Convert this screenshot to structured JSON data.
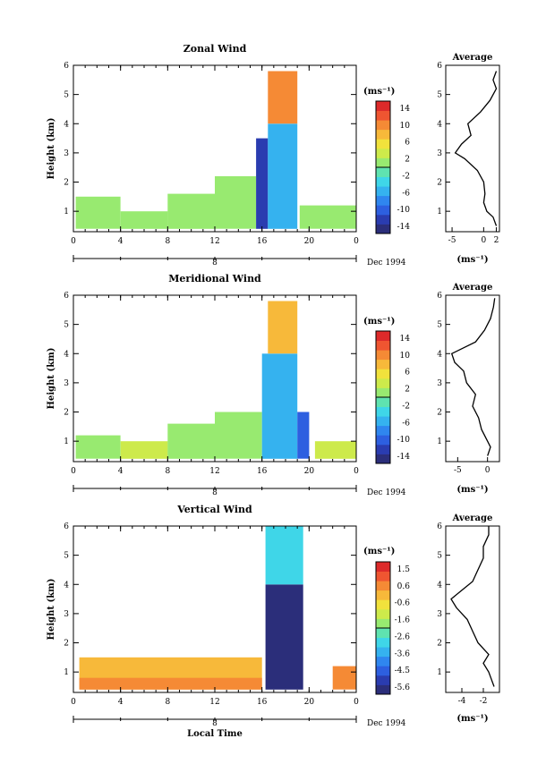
{
  "figure": {
    "xlabel": "Local Time",
    "x_ticks": [
      "0",
      "4",
      "8",
      "12",
      "16",
      "20",
      "0"
    ],
    "date_marker": "8",
    "date_label": "Dec 1994",
    "units_label": "(ms⁻¹)",
    "avg_units_label": "(ms⁻¹)",
    "average_title": "Average",
    "ylabel": "Height (km)",
    "y_ticks": [
      "1",
      "2",
      "3",
      "4",
      "5",
      "6"
    ]
  },
  "colors": {
    "scale": [
      "#2b2e7a",
      "#2a3cb0",
      "#2d5fe0",
      "#2f86ef",
      "#35b2ef",
      "#3fd6e8",
      "#5fe3b0",
      "#98ea70",
      "#cdea4b",
      "#f1e23c",
      "#f7b93a",
      "#f58a35",
      "#ef5531",
      "#dd2a2a"
    ]
  },
  "chart_data": [
    {
      "type": "heatmap",
      "title": "Zonal Wind",
      "x_range": [
        0,
        24
      ],
      "y_range": [
        0.3,
        6
      ],
      "colorbar": {
        "ticks": [
          "14",
          "10",
          "6",
          "2",
          "-2",
          "-6",
          "-10",
          "-14"
        ],
        "range": [
          -16,
          16
        ]
      },
      "regions": [
        {
          "x": [
            0.2,
            4
          ],
          "y": [
            0.4,
            1.5
          ],
          "value": 2
        },
        {
          "x": [
            4,
            8
          ],
          "y": [
            0.4,
            1.0
          ],
          "value": 1
        },
        {
          "x": [
            8,
            12
          ],
          "y": [
            0.4,
            1.6
          ],
          "value": 0
        },
        {
          "x": [
            12,
            15.5
          ],
          "y": [
            0.4,
            2.2
          ],
          "value": 2
        },
        {
          "x": [
            15.5,
            16.5
          ],
          "y": [
            0.4,
            3.5
          ],
          "value": -12
        },
        {
          "x": [
            16.5,
            19
          ],
          "y": [
            0.4,
            4.0
          ],
          "value": -6
        },
        {
          "x": [
            16.5,
            19
          ],
          "y": [
            4.0,
            5.8
          ],
          "value": 10
        },
        {
          "x": [
            19.2,
            24
          ],
          "y": [
            0.4,
            1.2
          ],
          "value": 0
        }
      ],
      "average": {
        "x_ticks": [
          "-5",
          "0",
          "2"
        ],
        "x_range": [
          -6,
          2.5
        ],
        "height": [
          0.5,
          0.8,
          1.0,
          1.3,
          1.6,
          2.0,
          2.4,
          2.8,
          3.0,
          3.3,
          3.6,
          4.0,
          4.4,
          4.8,
          5.2,
          5.5,
          5.8
        ],
        "value": [
          2.0,
          1.5,
          0.5,
          0.0,
          0.2,
          0.0,
          -1.0,
          -3.0,
          -4.5,
          -3.5,
          -2.0,
          -2.5,
          -0.5,
          1.0,
          2.0,
          1.5,
          2.0
        ]
      }
    },
    {
      "type": "heatmap",
      "title": "Meridional Wind",
      "x_range": [
        0,
        24
      ],
      "y_range": [
        0.3,
        6
      ],
      "colorbar": {
        "ticks": [
          "14",
          "10",
          "6",
          "2",
          "-2",
          "-6",
          "-10",
          "-14"
        ],
        "range": [
          -16,
          16
        ]
      },
      "regions": [
        {
          "x": [
            0.2,
            4
          ],
          "y": [
            0.4,
            1.2
          ],
          "value": 0
        },
        {
          "x": [
            4,
            8
          ],
          "y": [
            0.4,
            1.0
          ],
          "value": 4
        },
        {
          "x": [
            8,
            12
          ],
          "y": [
            0.4,
            1.6
          ],
          "value": 1
        },
        {
          "x": [
            12,
            16
          ],
          "y": [
            0.4,
            2.0
          ],
          "value": 2
        },
        {
          "x": [
            16,
            19
          ],
          "y": [
            0.4,
            4.0
          ],
          "value": -6
        },
        {
          "x": [
            16.5,
            19
          ],
          "y": [
            4.0,
            5.8
          ],
          "value": 9
        },
        {
          "x": [
            19,
            20
          ],
          "y": [
            0.4,
            2.0
          ],
          "value": -10
        },
        {
          "x": [
            20.5,
            24
          ],
          "y": [
            0.4,
            1.0
          ],
          "value": 4
        }
      ],
      "average": {
        "x_ticks": [
          "-5",
          "0"
        ],
        "x_range": [
          -7,
          2
        ],
        "height": [
          0.5,
          0.8,
          1.0,
          1.4,
          1.8,
          2.2,
          2.6,
          3.0,
          3.4,
          3.7,
          4.0,
          4.4,
          4.8,
          5.2,
          5.6,
          5.9
        ],
        "value": [
          0.0,
          0.5,
          0.0,
          -1.0,
          -1.5,
          -2.5,
          -2.0,
          -3.5,
          -4.0,
          -5.5,
          -6.0,
          -2.0,
          -0.5,
          0.5,
          1.0,
          1.2
        ]
      }
    },
    {
      "type": "heatmap",
      "title": "Vertical Wind",
      "x_range": [
        0,
        24
      ],
      "y_range": [
        0.3,
        6
      ],
      "colorbar": {
        "ticks": [
          "1.5",
          "0.6",
          "-0.6",
          "-1.6",
          "-2.6",
          "-3.6",
          "-4.5",
          "-5.6"
        ],
        "range": [
          -6.1,
          2
        ]
      },
      "regions": [
        {
          "x": [
            0.5,
            16
          ],
          "y": [
            0.4,
            1.5
          ],
          "value": 0.0
        },
        {
          "x": [
            0.5,
            16
          ],
          "y": [
            0.4,
            0.8
          ],
          "value": 0.6
        },
        {
          "x": [
            16.3,
            19.5
          ],
          "y": [
            0.4,
            4.0
          ],
          "value": -5.8
        },
        {
          "x": [
            16.3,
            19.5
          ],
          "y": [
            4.0,
            6.0
          ],
          "value": -3.0
        },
        {
          "x": [
            22,
            24
          ],
          "y": [
            0.4,
            1.2
          ],
          "value": 0.6
        }
      ],
      "average": {
        "x_ticks": [
          "-4",
          "-2"
        ],
        "x_range": [
          -5.5,
          -0.5
        ],
        "height": [
          0.5,
          0.8,
          1.0,
          1.3,
          1.6,
          2.0,
          2.4,
          2.8,
          3.2,
          3.5,
          3.8,
          4.1,
          4.5,
          4.9,
          5.3,
          5.7,
          6.0
        ],
        "value": [
          -1.0,
          -1.3,
          -1.5,
          -2.0,
          -1.5,
          -2.5,
          -3.0,
          -3.5,
          -4.5,
          -5.0,
          -4.0,
          -3.0,
          -2.5,
          -2.0,
          -2.0,
          -1.5,
          -1.5
        ]
      }
    }
  ]
}
